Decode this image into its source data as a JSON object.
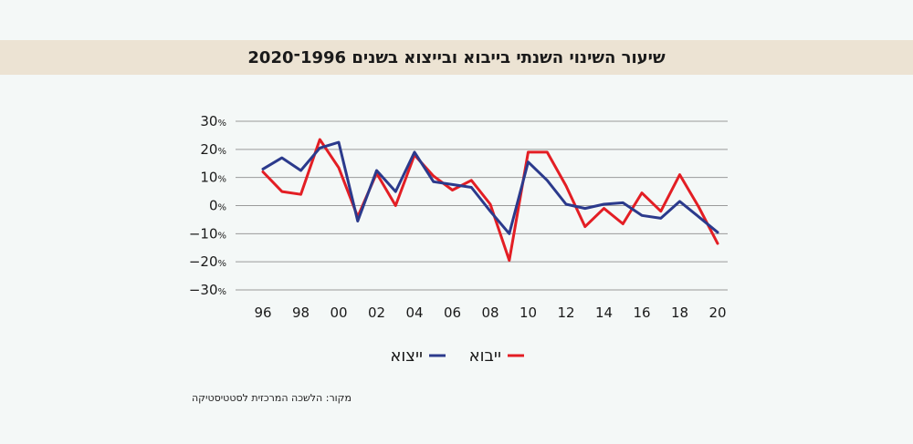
{
  "title": "שיעור השינוי השנתי בייבוא ובייצוא בשנים 1996־2020",
  "source": "מקור: הלשכה המרכזית לסטטיסטיקה",
  "chart_data": {
    "type": "line",
    "title": "שיעור השינוי השנתי בייבוא ובייצוא בשנים 1996־2020",
    "x": [
      1996,
      1997,
      1998,
      1999,
      2000,
      2001,
      2002,
      2003,
      2004,
      2005,
      2006,
      2007,
      2008,
      2009,
      2010,
      2011,
      2012,
      2013,
      2014,
      2015,
      2016,
      2017,
      2018,
      2019,
      2020
    ],
    "x_tick_labels": [
      "96",
      "98",
      "00",
      "02",
      "04",
      "06",
      "08",
      "10",
      "12",
      "14",
      "16",
      "18",
      "20"
    ],
    "x_tick_years": [
      1996,
      1998,
      2000,
      2002,
      2004,
      2006,
      2008,
      2010,
      2012,
      2014,
      2016,
      2018,
      2020
    ],
    "y_tick_labels": [
      "30%",
      "20%",
      "10%",
      "0%",
      "−10%",
      "−20%",
      "−30%"
    ],
    "y_tick_values": [
      30,
      20,
      10,
      0,
      -10,
      -20,
      -30
    ],
    "ylim": [
      -30,
      30
    ],
    "grid": true,
    "legend_position": "bottom",
    "series": [
      {
        "name": "ייצוא",
        "color": "#2b3a8c",
        "values": [
          13,
          17,
          12.5,
          20.5,
          22.5,
          -5.5,
          12.5,
          5,
          19,
          8.5,
          7.5,
          6.5,
          -2,
          -10,
          15.5,
          9,
          0.5,
          -1,
          0.5,
          1,
          -3.5,
          -4.5,
          1.5,
          -4,
          -9.5
        ]
      },
      {
        "name": "ייבוא",
        "color": "#e31e24",
        "values": [
          12,
          5,
          4,
          23.5,
          13.5,
          -4,
          11.5,
          0,
          18,
          10.5,
          5.5,
          9,
          0.5,
          -19.5,
          19,
          19,
          7,
          -7.5,
          -1,
          -6.5,
          4.5,
          -2,
          11,
          -0.5,
          -13.5
        ]
      }
    ]
  }
}
